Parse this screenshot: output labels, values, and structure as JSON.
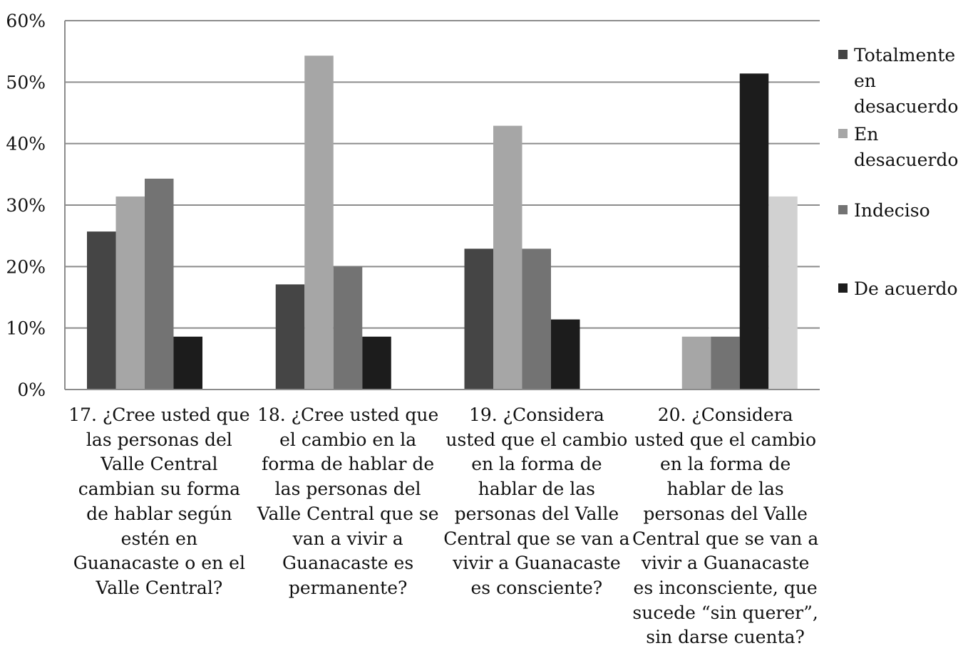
{
  "chart_data": {
    "type": "bar",
    "categories": [
      "17. ¿Cree usted que las personas del Valle Central cambian su forma de hablar según estén en Guanacaste o en el Valle Central?",
      "18. ¿Cree usted que el cambio en la forma de hablar de las personas del Valle Central que se van a vivir a Guanacaste es permanente?",
      "19. ¿Considera usted que el cambio en la forma de hablar de las personas del Valle Central que se van a vivir a Guanacaste es consciente?",
      "20. ¿Considera usted que el cambio en la forma de hablar de las personas del Valle Central que se van a vivir a Guanacaste es inconsciente, que sucede “sin querer”, sin darse cuenta?"
    ],
    "series": [
      {
        "name": "Totalmente en desacuerdo",
        "color": "#454545",
        "values": [
          25.7,
          17.1,
          22.9,
          null
        ]
      },
      {
        "name": "En desacuerdo",
        "color": "#a6a6a6",
        "values": [
          31.4,
          54.3,
          42.9,
          8.6
        ]
      },
      {
        "name": "Indeciso",
        "color": "#737373",
        "values": [
          34.3,
          20.0,
          22.9,
          8.6
        ]
      },
      {
        "name": "De acuerdo",
        "color": "#1c1c1c",
        "values": [
          8.6,
          8.6,
          11.4,
          51.4
        ]
      },
      {
        "color": "#d1d1d1",
        "values": [
          null,
          null,
          null,
          31.4
        ]
      }
    ],
    "yticks": [
      "0%",
      "10%",
      "20%",
      "30%",
      "40%",
      "50%",
      "60%"
    ],
    "ylim": [
      0,
      60
    ],
    "grid": true,
    "legend_position": "right"
  }
}
